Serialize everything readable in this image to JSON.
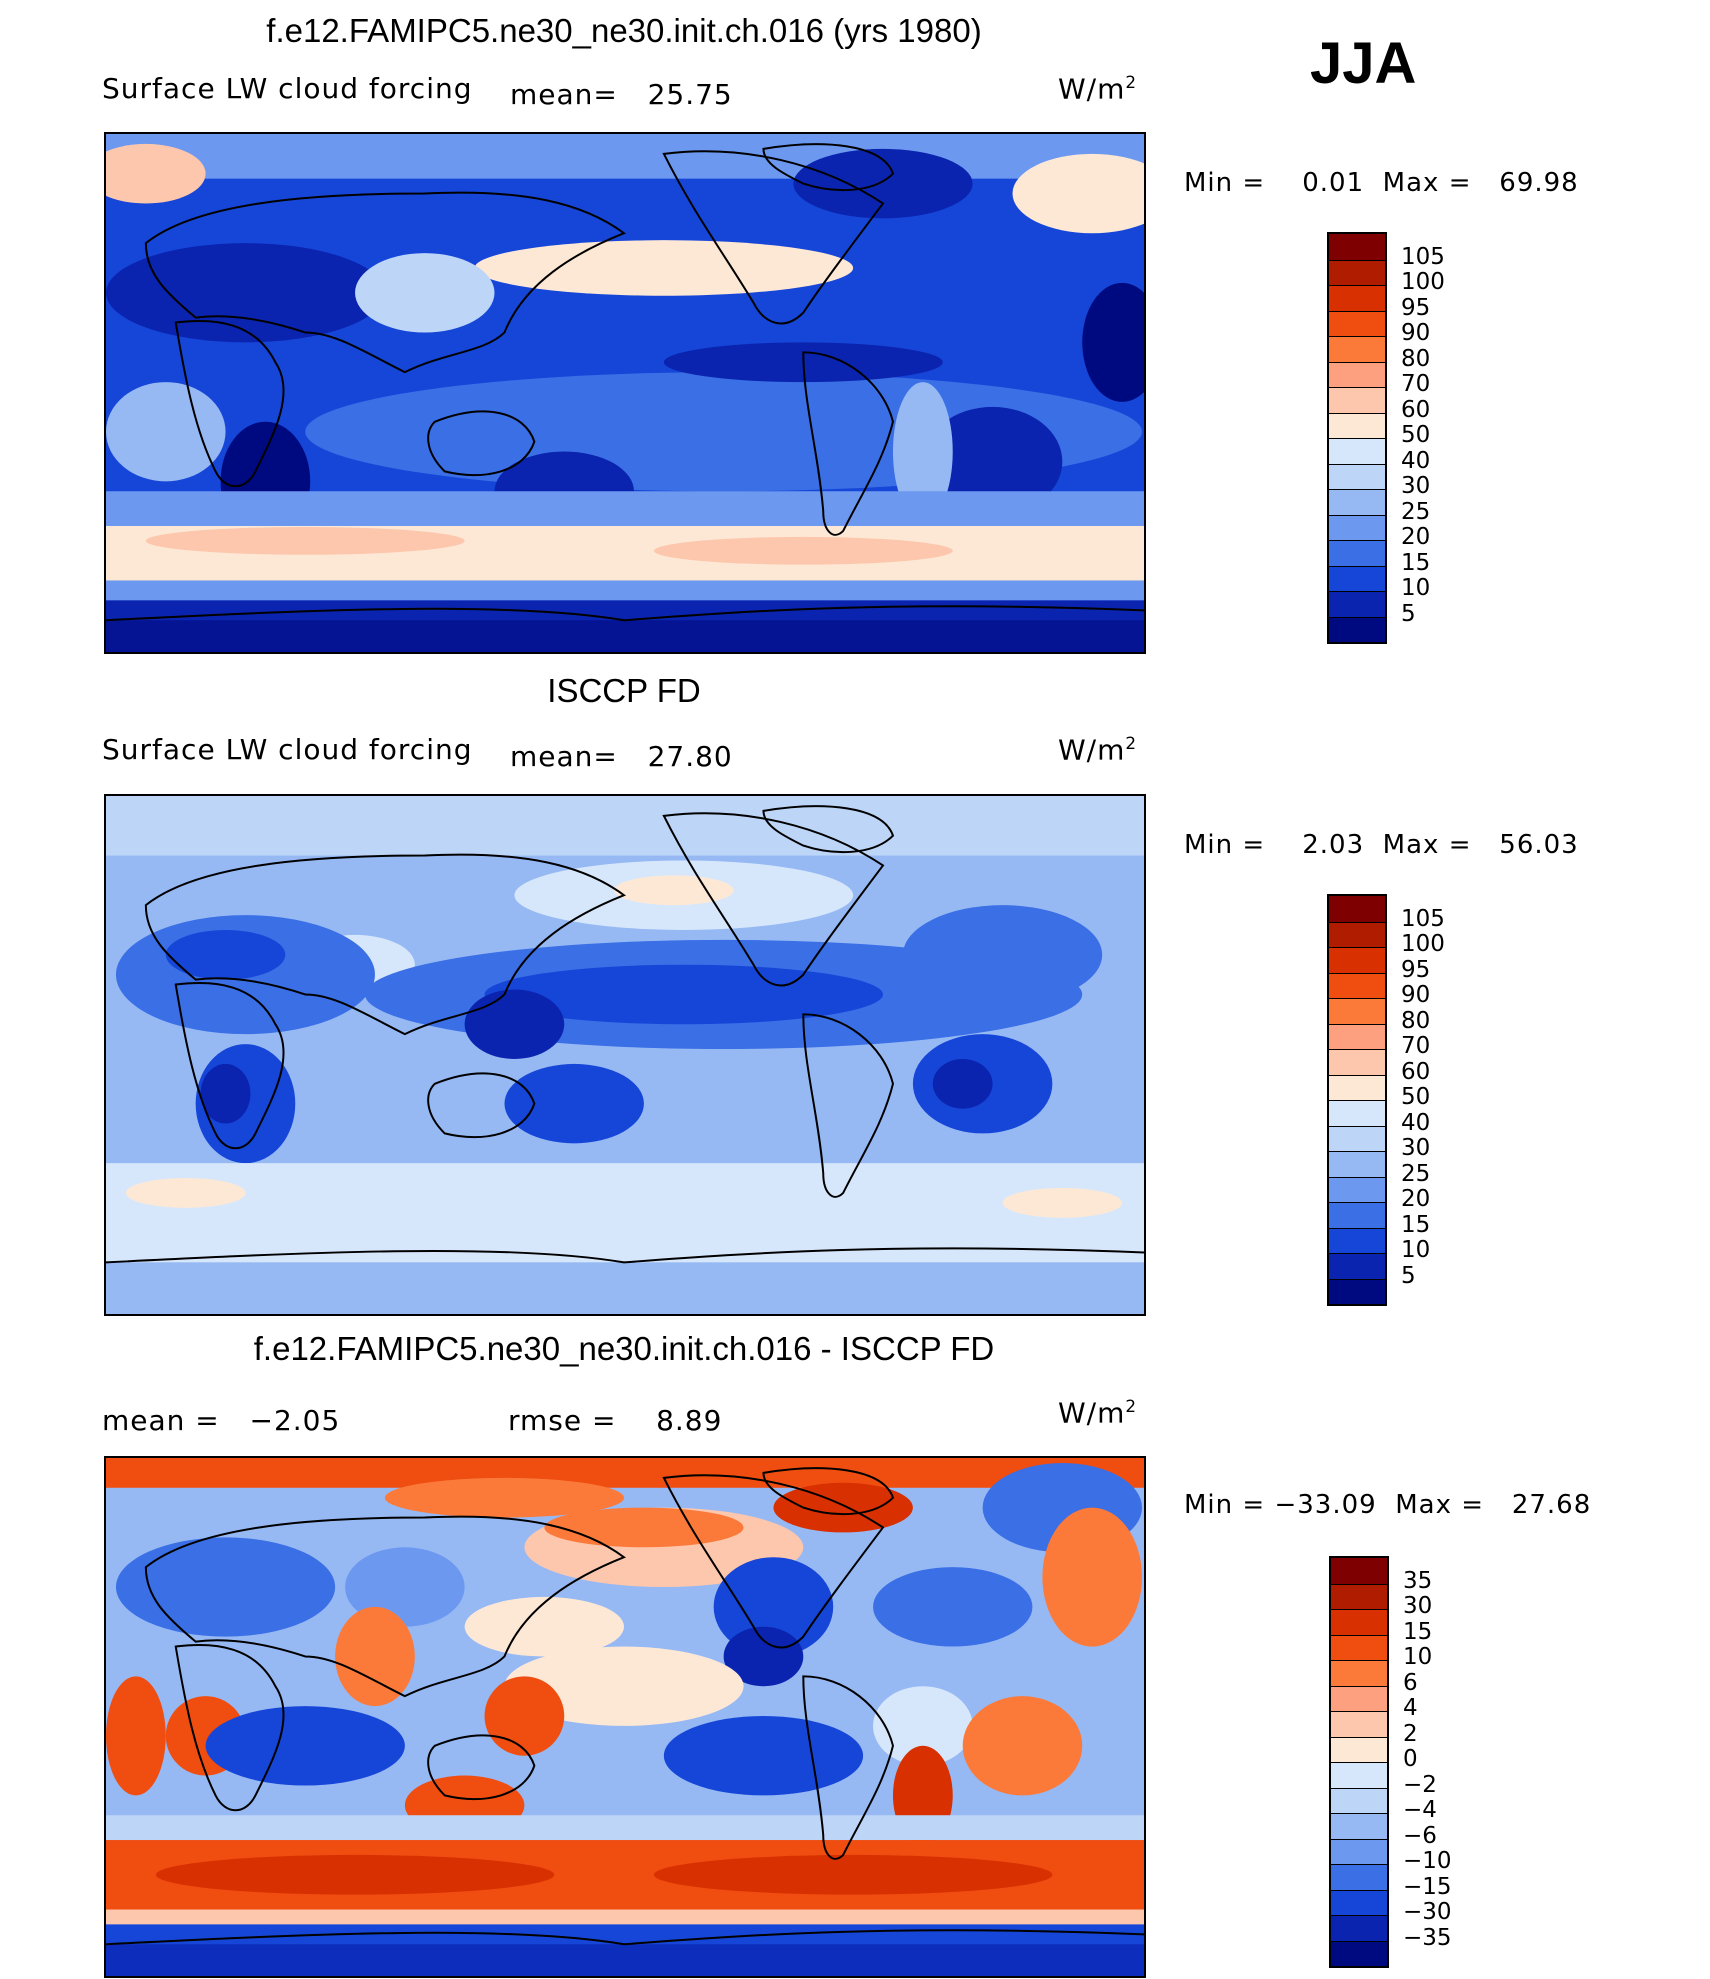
{
  "season": "JJA",
  "panels": [
    {
      "title": "f.e12.FAMIPC5.ne30_ne30.init.ch.016 (yrs 1980)",
      "left_label": "Surface LW cloud forcing",
      "mid_label": "mean=",
      "mid_value": "25.75",
      "units": "W/m",
      "units_exp": "2",
      "min_label": "Min =",
      "min_value": "0.01",
      "max_label": "Max =",
      "max_value": "69.98",
      "levels": [
        "105",
        "100",
        "95",
        "90",
        "80",
        "70",
        "60",
        "50",
        "40",
        "30",
        "25",
        "20",
        "15",
        "10",
        "5"
      ],
      "colors": [
        "#7f0000",
        "#b01c00",
        "#d83000",
        "#f04d10",
        "#fb7a3a",
        "#fca080",
        "#fdc7ad",
        "#fde8d6",
        "#d7e7fb",
        "#bdd5f7",
        "#96b9f4",
        "#6c98f0",
        "#3a6fe6",
        "#1646d8",
        "#0a24b0",
        "#000a80"
      ]
    },
    {
      "title": "ISCCP FD",
      "left_label": "Surface LW cloud forcing",
      "mid_label": "mean=",
      "mid_value": "27.80",
      "units": "W/m",
      "units_exp": "2",
      "min_label": "Min =",
      "min_value": "2.03",
      "max_label": "Max =",
      "max_value": "56.03",
      "levels": [
        "105",
        "100",
        "95",
        "90",
        "80",
        "70",
        "60",
        "50",
        "40",
        "30",
        "25",
        "20",
        "15",
        "10",
        "5"
      ],
      "colors": [
        "#7f0000",
        "#b01c00",
        "#d83000",
        "#f04d10",
        "#fb7a3a",
        "#fca080",
        "#fdc7ad",
        "#fde8d6",
        "#d7e7fb",
        "#bdd5f7",
        "#96b9f4",
        "#6c98f0",
        "#3a6fe6",
        "#1646d8",
        "#0a24b0",
        "#000a80"
      ]
    },
    {
      "title": "f.e12.FAMIPC5.ne30_ne30.init.ch.016 - ISCCP FD",
      "left_label": "mean =",
      "left_value": "−2.05",
      "mid_label": "rmse =",
      "mid_value": "8.89",
      "units": "W/m",
      "units_exp": "2",
      "min_label": "Min =",
      "min_value": "−33.09",
      "max_label": "Max =",
      "max_value": "27.68",
      "levels": [
        "35",
        "30",
        "15",
        "10",
        "6",
        "4",
        "2",
        "0",
        "−2",
        "−4",
        "−6",
        "−10",
        "−15",
        "−30",
        "−35"
      ],
      "colors": [
        "#7f0000",
        "#b01c00",
        "#d83000",
        "#f04d10",
        "#fb7a3a",
        "#fca080",
        "#fdc7ad",
        "#fde8d6",
        "#d7e7fb",
        "#bdd5f7",
        "#96b9f4",
        "#6c98f0",
        "#3a6fe6",
        "#1646d8",
        "#0a24b0",
        "#000a80"
      ]
    }
  ]
}
